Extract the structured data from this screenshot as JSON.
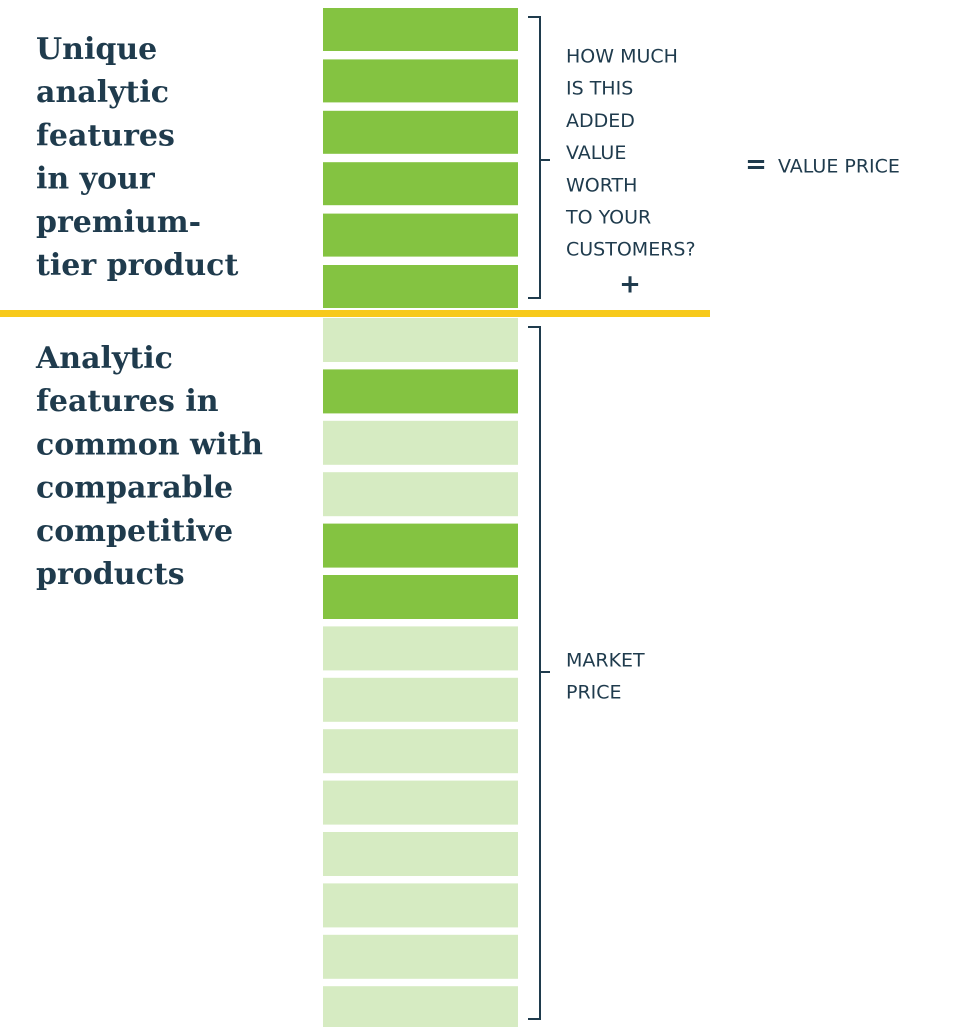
{
  "unique_label": {
    "lines": [
      "Unique",
      "analytic",
      "features",
      "in your",
      "premium-",
      "tier product"
    ]
  },
  "common_label": {
    "lines": [
      "Analytic",
      "features in",
      "common with",
      "comparable",
      "competitive",
      "products"
    ]
  },
  "added_value_question": {
    "lines": [
      "HOW MUCH",
      "IS THIS",
      "ADDED",
      "VALUE",
      "WORTH",
      "TO YOUR",
      "CUSTOMERS?"
    ]
  },
  "plus_sign": "+",
  "equals_sign": "=",
  "value_price": "VALUE PRICE",
  "market_price": {
    "lines": [
      "MARKET",
      "PRICE"
    ]
  }
}
